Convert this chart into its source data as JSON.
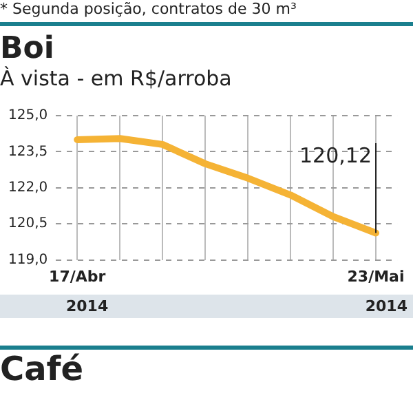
{
  "chart_data": {
    "type": "line",
    "title": "Boi",
    "subtitle": "À vista - em R$/arroba",
    "annotations": [
      "* Segunda posição, contratos de 30 m³",
      "2014",
      "2014",
      "Café"
    ],
    "categories": [
      "17/Abr",
      null,
      null,
      null,
      null,
      null,
      null,
      "23/Mai"
    ],
    "series": [
      {
        "color": "#f5b335",
        "values": [
          124.0,
          124.05,
          123.8,
          123.0,
          122.4,
          121.7,
          120.8,
          120.12
        ],
        "value_labels": [
          null,
          null,
          null,
          null,
          null,
          null,
          null,
          "120,12"
        ]
      }
    ],
    "ylim": [
      119,
      125
    ],
    "yticks": [
      {
        "value": 119,
        "label": "119,0"
      },
      {
        "value": 120.5,
        "label": "120,5"
      },
      {
        "value": 122,
        "label": "122,0"
      },
      {
        "value": 123.5,
        "label": "123,5"
      },
      {
        "value": 125,
        "label": "125,0"
      }
    ],
    "grid": true,
    "legend": false
  }
}
